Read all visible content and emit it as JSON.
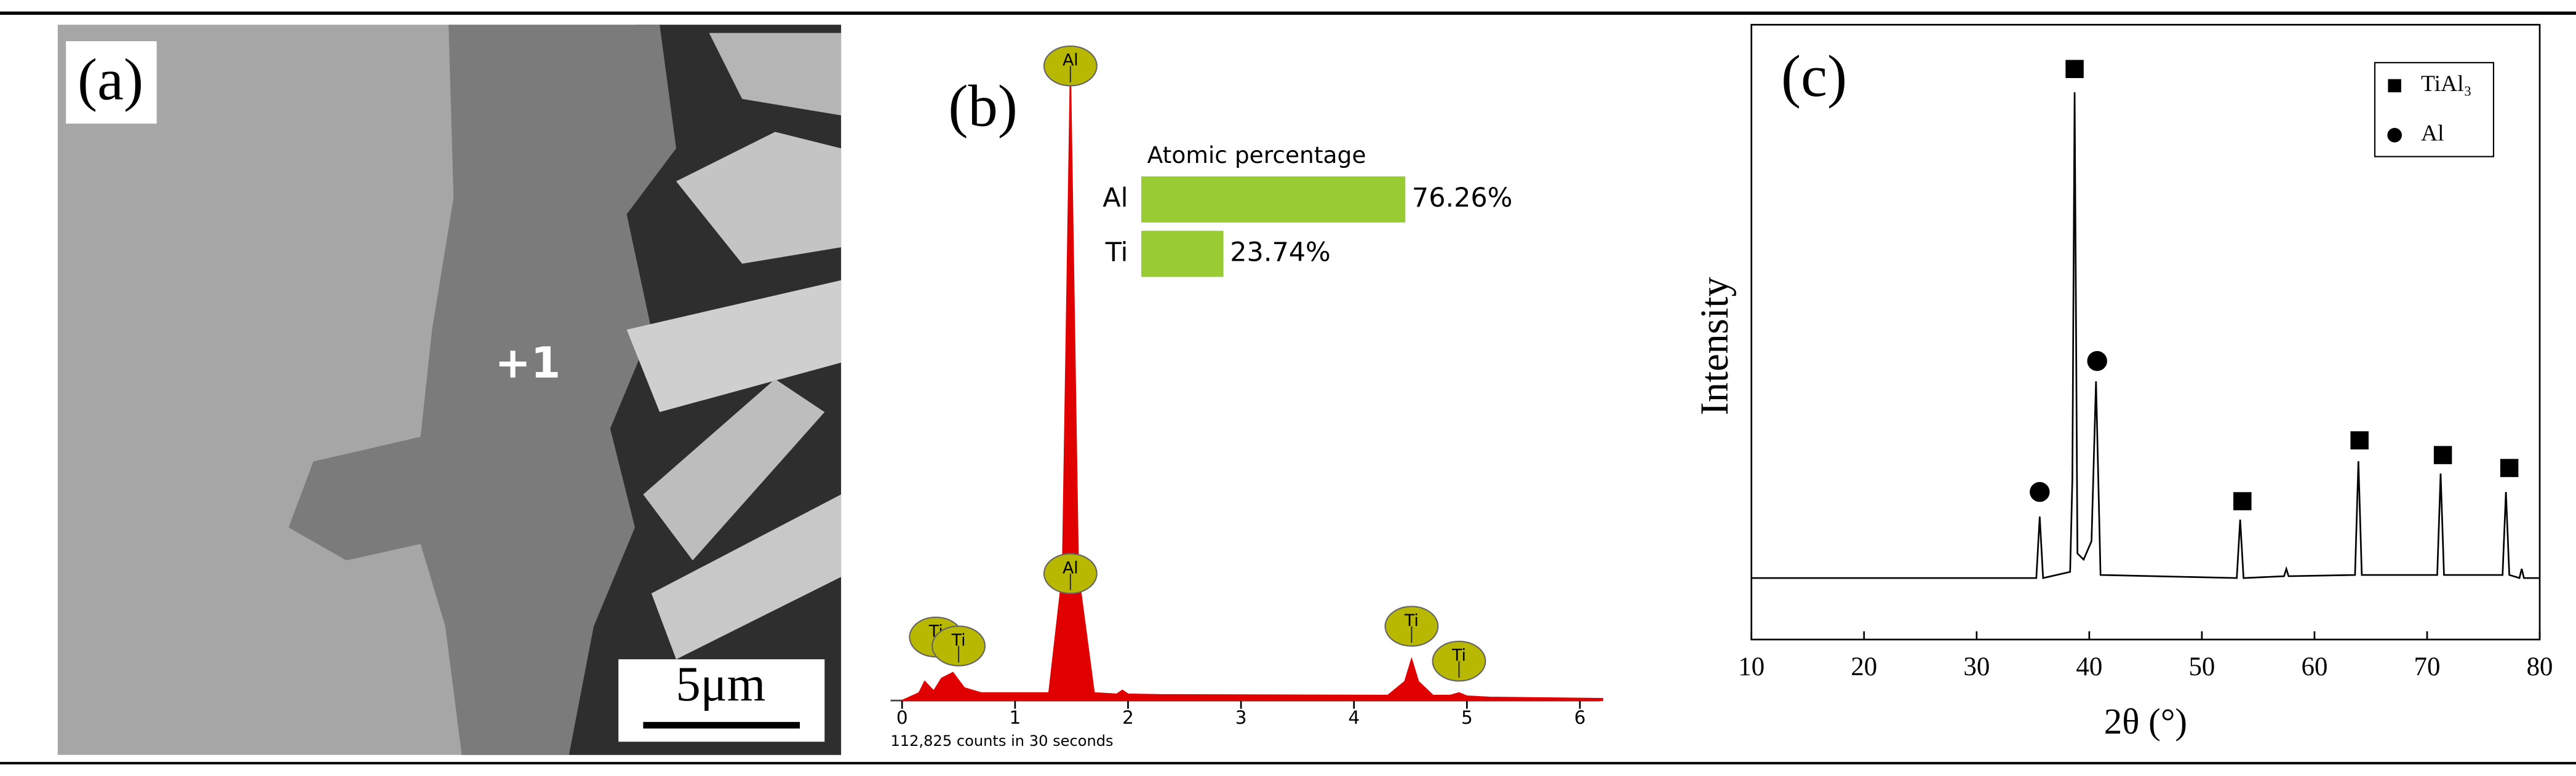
{
  "panels": {
    "a": {
      "label": "(a)",
      "point_label": "+1",
      "scale_bar": "5μm"
    }
  },
  "chart_data": [
    {
      "type": "bar",
      "panel_label": "(b)",
      "title": "Atomic percentage",
      "orientation": "horizontal",
      "categories": [
        "Al",
        "Ti"
      ],
      "values": [
        76.26,
        23.74
      ],
      "value_labels": [
        "76.26%",
        "23.74%"
      ],
      "color": "#99cc33",
      "xlim": [
        0,
        100
      ]
    },
    {
      "type": "area",
      "x": [
        0,
        0.15,
        0.2,
        0.28,
        0.35,
        0.45,
        0.55,
        0.7,
        1.3,
        1.42,
        1.49,
        1.56,
        1.7,
        1.9,
        1.95,
        2.0,
        2.3,
        4.3,
        4.45,
        4.51,
        4.57,
        4.7,
        4.85,
        4.93,
        5.0,
        5.2,
        6.2
      ],
      "series": [
        {
          "values": [
            0,
            1.2,
            3,
            1.5,
            3.5,
            4.4,
            2,
            1.2,
            1.2,
            20,
            98.7,
            20,
            1.2,
            1,
            1.6,
            1,
            0.9,
            0.8,
            3,
            6.5,
            3,
            0.8,
            0.8,
            1.2,
            0.7,
            0.5,
            0.3
          ],
          "color": "#e00000"
        }
      ],
      "xlim": [
        0,
        6.2
      ],
      "xticks": [
        0,
        1,
        2,
        3,
        4,
        5,
        6
      ],
      "ylim": [
        0,
        100
      ],
      "peak_labels": [
        {
          "text": "Ti",
          "x": 0.3,
          "y": 10
        },
        {
          "text": "Ti",
          "x": 0.5,
          "y": 8.6
        },
        {
          "text": "Al",
          "x": 1.49,
          "y": 100
        },
        {
          "text": "Al",
          "x": 1.49,
          "y": 20
        },
        {
          "text": "Ti",
          "x": 4.51,
          "y": 11.7
        },
        {
          "text": "Ti",
          "x": 4.93,
          "y": 6.2
        }
      ],
      "caption": "112,825 counts in 30 seconds"
    },
    {
      "type": "line",
      "panel_label": "(c)",
      "x": [
        10,
        35.3,
        35.6,
        35.9,
        38.3,
        38.5,
        38.7,
        38.95,
        39.5,
        40.2,
        40.6,
        41.0,
        53.1,
        53.4,
        53.7,
        57.3,
        57.5,
        57.7,
        63.6,
        63.9,
        64.2,
        70.9,
        71.2,
        71.5,
        76.7,
        77,
        77.3,
        78.2,
        78.4,
        78.6,
        80
      ],
      "series": [
        {
          "values": [
            10,
            10,
            20,
            10,
            11,
            26,
            89,
            14,
            13,
            16,
            42,
            10.5,
            10,
            19.5,
            10,
            10.3,
            11.5,
            10.3,
            10.5,
            29,
            10.5,
            10.5,
            27,
            10.5,
            10.5,
            24,
            10.5,
            10,
            11.5,
            10,
            10
          ],
          "color": "#000000"
        }
      ],
      "xlim": [
        10,
        80
      ],
      "xticks": [
        10,
        20,
        30,
        40,
        50,
        60,
        70,
        80
      ],
      "ylim": [
        0,
        100
      ],
      "xlabel": "2θ (°)",
      "ylabel": "Intensity",
      "legend": {
        "entries": [
          {
            "name": "TiAl₃",
            "marker": "square"
          },
          {
            "name": "Al",
            "marker": "circle"
          }
        ],
        "position": "upper right"
      },
      "markers": [
        {
          "x": 35.6,
          "y": 24,
          "entry": 1
        },
        {
          "x": 38.7,
          "y": 92.8,
          "entry": 0
        },
        {
          "x": 40.7,
          "y": 45.3,
          "entry": 1
        },
        {
          "x": 53.6,
          "y": 22.5,
          "entry": 0
        },
        {
          "x": 64,
          "y": 32.4,
          "entry": 0
        },
        {
          "x": 71.4,
          "y": 30,
          "entry": 0
        },
        {
          "x": 77.3,
          "y": 27.9,
          "entry": 0
        }
      ]
    }
  ]
}
